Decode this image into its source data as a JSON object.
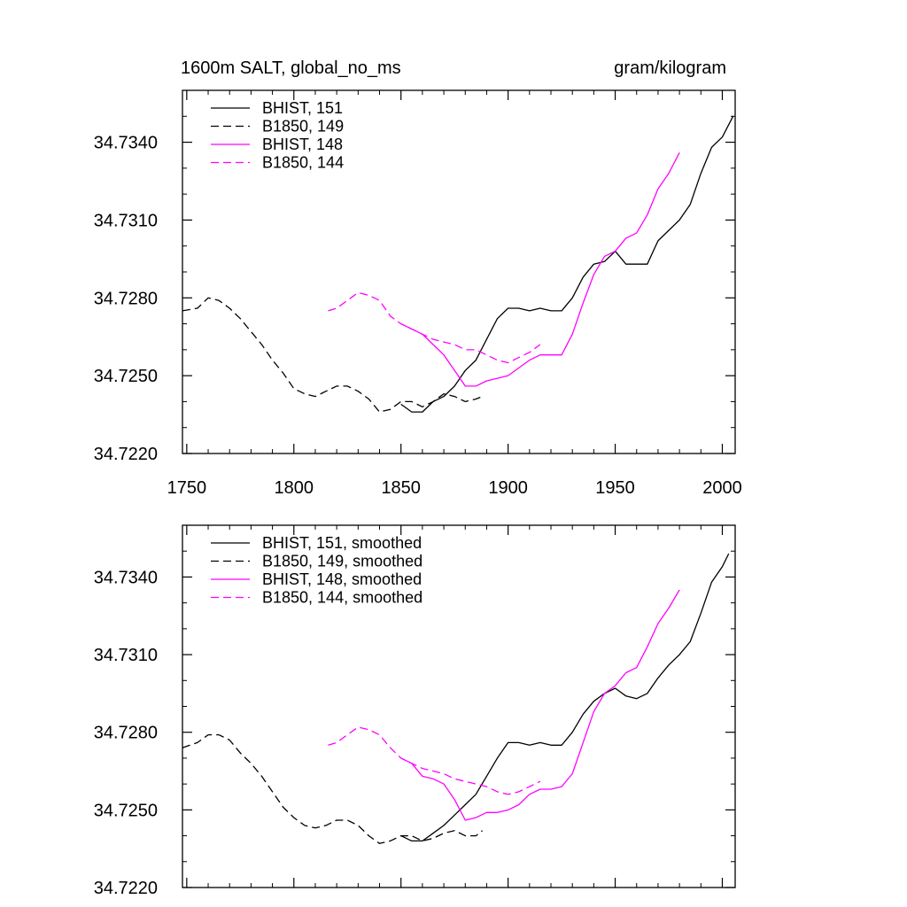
{
  "chart_data": [
    {
      "type": "line",
      "title": "1600m SALT, global_no_ms",
      "units": "gram/kilogram",
      "xlim": [
        1748,
        2006
      ],
      "ylim": [
        34.722,
        34.736
      ],
      "xticks": [
        1750,
        1800,
        1850,
        1900,
        1950,
        2000
      ],
      "xtick_labels": [
        "1750",
        "1800",
        "1850",
        "1900",
        "1950",
        "2000"
      ],
      "yticks": [
        34.722,
        34.725,
        34.728,
        34.731,
        34.734
      ],
      "ytick_labels": [
        "34.7220",
        "34.7250",
        "34.7280",
        "34.7310",
        "34.7340"
      ],
      "series": [
        {
          "name": "BHIST, 151",
          "color": "#000000",
          "style": "solid",
          "x": [
            1850,
            1855,
            1860,
            1865,
            1870,
            1875,
            1880,
            1885,
            1890,
            1895,
            1900,
            1905,
            1910,
            1915,
            1920,
            1925,
            1930,
            1935,
            1940,
            1945,
            1950,
            1955,
            1960,
            1965,
            1970,
            1975,
            1980,
            1985,
            1990,
            1995,
            2000,
            2005
          ],
          "y": [
            34.7239,
            34.7236,
            34.7236,
            34.724,
            34.7242,
            34.7246,
            34.7252,
            34.7256,
            34.7264,
            34.7272,
            34.7276,
            34.7276,
            34.7275,
            34.7276,
            34.7275,
            34.7275,
            34.728,
            34.7288,
            34.7293,
            34.7294,
            34.7298,
            34.7293,
            34.7293,
            34.7293,
            34.7302,
            34.7306,
            34.731,
            34.7316,
            34.7328,
            34.7338,
            34.7342,
            34.735
          ]
        },
        {
          "name": "B1850, 149",
          "color": "#000000",
          "style": "dashed",
          "x": [
            1748,
            1755,
            1760,
            1765,
            1770,
            1775,
            1780,
            1785,
            1790,
            1795,
            1800,
            1805,
            1810,
            1815,
            1820,
            1825,
            1830,
            1835,
            1840,
            1845,
            1850,
            1855,
            1860,
            1865,
            1870,
            1875,
            1880,
            1885,
            1888
          ],
          "y": [
            34.7275,
            34.7276,
            34.728,
            34.7279,
            34.7276,
            34.7272,
            34.7267,
            34.7262,
            34.7256,
            34.7251,
            34.7245,
            34.7243,
            34.7242,
            34.7244,
            34.7246,
            34.7246,
            34.7244,
            34.7241,
            34.7236,
            34.7237,
            34.724,
            34.724,
            34.7238,
            34.724,
            34.7243,
            34.7242,
            34.724,
            34.7241,
            34.7242
          ]
        },
        {
          "name": "BHIST, 148",
          "color": "#ff00ff",
          "style": "solid",
          "x": [
            1850,
            1855,
            1860,
            1865,
            1870,
            1875,
            1880,
            1885,
            1890,
            1895,
            1900,
            1905,
            1910,
            1915,
            1920,
            1925,
            1930,
            1935,
            1940,
            1945,
            1950,
            1955,
            1960,
            1965,
            1970,
            1975,
            1980
          ],
          "y": [
            34.727,
            34.7268,
            34.7266,
            34.7262,
            34.7258,
            34.7252,
            34.7246,
            34.7246,
            34.7248,
            34.7249,
            34.725,
            34.7253,
            34.7256,
            34.7258,
            34.7258,
            34.7258,
            34.7266,
            34.7278,
            34.7289,
            34.7296,
            34.7298,
            34.7303,
            34.7305,
            34.7312,
            34.7322,
            34.7328,
            34.7336
          ]
        },
        {
          "name": "B1850, 144",
          "color": "#ff00ff",
          "style": "dashed",
          "x": [
            1816,
            1820,
            1825,
            1830,
            1835,
            1840,
            1845,
            1850,
            1855,
            1860,
            1865,
            1870,
            1875,
            1880,
            1885,
            1890,
            1895,
            1900,
            1905,
            1910,
            1915
          ],
          "y": [
            34.7275,
            34.7276,
            34.7279,
            34.7282,
            34.7281,
            34.7279,
            34.7273,
            34.727,
            34.7268,
            34.7266,
            34.7264,
            34.7263,
            34.7262,
            34.726,
            34.726,
            34.7258,
            34.7256,
            34.7255,
            34.7257,
            34.7259,
            34.7262
          ]
        }
      ]
    },
    {
      "type": "line",
      "title": "",
      "xlim": [
        1748,
        2006
      ],
      "ylim": [
        34.722,
        34.736
      ],
      "xticks": [
        1750,
        1800,
        1850,
        1900,
        1950,
        2000
      ],
      "yticks": [
        34.722,
        34.725,
        34.728,
        34.731,
        34.734
      ],
      "ytick_labels": [
        "34.7220",
        "34.7250",
        "34.7280",
        "34.7310",
        "34.7340"
      ],
      "series": [
        {
          "name": "BHIST, 151, smoothed",
          "color": "#000000",
          "style": "solid",
          "x": [
            1850,
            1855,
            1860,
            1865,
            1870,
            1875,
            1880,
            1885,
            1890,
            1895,
            1900,
            1905,
            1910,
            1915,
            1920,
            1925,
            1930,
            1935,
            1940,
            1945,
            1950,
            1955,
            1960,
            1965,
            1970,
            1975,
            1980,
            1985,
            1990,
            1995,
            2000,
            2003
          ],
          "y": [
            34.724,
            34.7238,
            34.7238,
            34.7241,
            34.7244,
            34.7248,
            34.7252,
            34.7256,
            34.7263,
            34.727,
            34.7276,
            34.7276,
            34.7275,
            34.7276,
            34.7275,
            34.7275,
            34.728,
            34.7287,
            34.7292,
            34.7295,
            34.7297,
            34.7294,
            34.7293,
            34.7295,
            34.7301,
            34.7306,
            34.731,
            34.7315,
            34.7326,
            34.7338,
            34.7344,
            34.7349
          ]
        },
        {
          "name": "B1850, 149, smoothed",
          "color": "#000000",
          "style": "dashed",
          "x": [
            1748,
            1755,
            1760,
            1765,
            1770,
            1775,
            1780,
            1785,
            1790,
            1795,
            1800,
            1805,
            1810,
            1815,
            1820,
            1825,
            1830,
            1835,
            1840,
            1845,
            1850,
            1855,
            1860,
            1865,
            1870,
            1875,
            1880,
            1885,
            1888
          ],
          "y": [
            34.7274,
            34.7276,
            34.7279,
            34.7279,
            34.7277,
            34.7272,
            34.7268,
            34.7263,
            34.7257,
            34.7251,
            34.7247,
            34.7244,
            34.7243,
            34.7244,
            34.7246,
            34.7246,
            34.7244,
            34.724,
            34.7237,
            34.7238,
            34.724,
            34.724,
            34.7238,
            34.7239,
            34.7241,
            34.7242,
            34.724,
            34.724,
            34.7242
          ]
        },
        {
          "name": "BHIST, 148, smoothed",
          "color": "#ff00ff",
          "style": "solid",
          "x": [
            1850,
            1855,
            1860,
            1865,
            1870,
            1875,
            1880,
            1885,
            1890,
            1895,
            1900,
            1905,
            1910,
            1915,
            1920,
            1925,
            1930,
            1935,
            1940,
            1945,
            1950,
            1955,
            1960,
            1965,
            1970,
            1975,
            1980
          ],
          "y": [
            34.727,
            34.7268,
            34.7263,
            34.7262,
            34.726,
            34.7254,
            34.7246,
            34.7247,
            34.7249,
            34.7249,
            34.725,
            34.7252,
            34.7256,
            34.7258,
            34.7258,
            34.7259,
            34.7264,
            34.7276,
            34.7288,
            34.7295,
            34.7298,
            34.7303,
            34.7305,
            34.7313,
            34.7322,
            34.7328,
            34.7335
          ]
        },
        {
          "name": "B1850, 144, smoothed",
          "color": "#ff00ff",
          "style": "dashed",
          "x": [
            1816,
            1820,
            1825,
            1830,
            1835,
            1840,
            1845,
            1850,
            1855,
            1860,
            1865,
            1870,
            1875,
            1880,
            1885,
            1890,
            1895,
            1900,
            1905,
            1910,
            1915
          ],
          "y": [
            34.7275,
            34.7276,
            34.7279,
            34.7282,
            34.7281,
            34.7279,
            34.7274,
            34.727,
            34.7268,
            34.7266,
            34.7265,
            34.7264,
            34.7262,
            34.7261,
            34.726,
            34.7259,
            34.7257,
            34.7256,
            34.7257,
            34.7259,
            34.7261
          ]
        }
      ]
    }
  ]
}
